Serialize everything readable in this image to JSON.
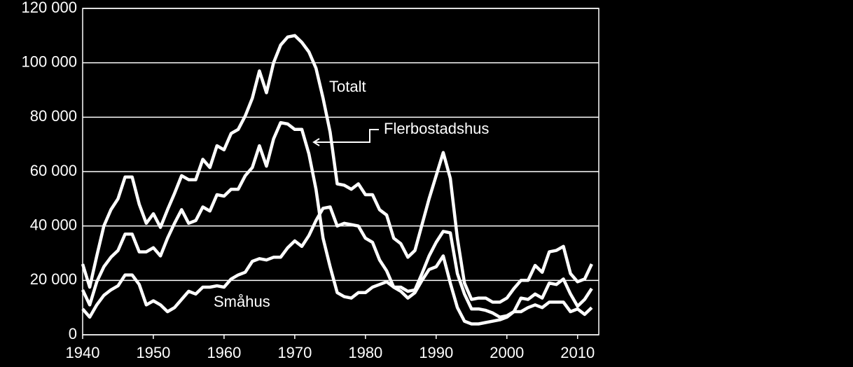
{
  "chart_data": {
    "type": "line",
    "x": [
      1940,
      1941,
      1942,
      1943,
      1944,
      1945,
      1946,
      1947,
      1948,
      1949,
      1950,
      1951,
      1952,
      1953,
      1954,
      1955,
      1956,
      1957,
      1958,
      1959,
      1960,
      1961,
      1962,
      1963,
      1964,
      1965,
      1966,
      1967,
      1968,
      1969,
      1970,
      1971,
      1972,
      1973,
      1974,
      1975,
      1976,
      1977,
      1978,
      1979,
      1980,
      1981,
      1982,
      1983,
      1984,
      1985,
      1986,
      1987,
      1988,
      1989,
      1990,
      1991,
      1992,
      1993,
      1994,
      1995,
      1996,
      1997,
      1998,
      1999,
      2000,
      2001,
      2002,
      2003,
      2004,
      2005,
      2006,
      2007,
      2008,
      2009,
      2010,
      2011,
      2012
    ],
    "xlim": [
      1940,
      2013
    ],
    "xticks": [
      1940,
      1950,
      1960,
      1970,
      1980,
      1990,
      2000,
      2010
    ],
    "ylim": [
      0,
      120000
    ],
    "yticks": [
      0,
      {
        "value": 20000,
        "label": "20 000"
      },
      {
        "value": 40000,
        "label": "40 000"
      },
      {
        "value": 60000,
        "label": "60 000"
      },
      {
        "value": 80000,
        "label": "80 000"
      },
      {
        "value": 100000,
        "label": "100 000"
      },
      {
        "value": 120000,
        "label": "120 000"
      }
    ],
    "grid": true,
    "series": [
      {
        "name": "Totalt",
        "color": "#ffffff",
        "values": [
          26000,
          17500,
          29000,
          40000,
          46000,
          50000,
          58000,
          58000,
          48000,
          41000,
          44500,
          39500,
          46000,
          52000,
          58500,
          57000,
          57000,
          64500,
          61500,
          69500,
          68000,
          74000,
          75500,
          80500,
          87000,
          97000,
          89000,
          100000,
          106500,
          109500,
          110000,
          107500,
          104000,
          98000,
          87000,
          74500,
          55500,
          55000,
          53500,
          55500,
          51500,
          51500,
          46000,
          44000,
          35500,
          33500,
          28500,
          31000,
          40500,
          50000,
          58500,
          67000,
          57500,
          35500,
          19000,
          13000,
          13500,
          13500,
          12000,
          12000,
          13500,
          17000,
          20000,
          20000,
          25500,
          23000,
          30500,
          31000,
          32500,
          22500,
          19500,
          20500,
          26000
        ]
      },
      {
        "name": "Flerbostadshus",
        "color": "#ffffff",
        "values": [
          16500,
          11000,
          19500,
          25000,
          28500,
          31000,
          37000,
          37000,
          30500,
          30500,
          32000,
          29000,
          35500,
          41000,
          46000,
          41000,
          42000,
          47000,
          45500,
          51500,
          51000,
          53500,
          53500,
          58500,
          61500,
          69500,
          62000,
          72000,
          78000,
          77500,
          75500,
          75500,
          66500,
          53500,
          35500,
          25000,
          15500,
          14000,
          13500,
          15500,
          15500,
          17500,
          18500,
          19500,
          17500,
          16000,
          13500,
          15500,
          20000,
          24000,
          25000,
          29000,
          19000,
          10000,
          5000,
          4000,
          4000,
          4500,
          5000,
          5500,
          6500,
          8500,
          8500,
          10000,
          11000,
          10000,
          12000,
          12000,
          12000,
          8500,
          9500,
          7500,
          10000
        ]
      },
      {
        "name": "Småhus",
        "color": "#ffffff",
        "values": [
          9500,
          6500,
          11000,
          14500,
          16500,
          18000,
          22000,
          22000,
          18500,
          11000,
          12500,
          11000,
          8500,
          10000,
          13000,
          16000,
          15000,
          17500,
          17500,
          18000,
          17500,
          20500,
          22000,
          23000,
          27000,
          28000,
          27500,
          28500,
          28500,
          32000,
          34500,
          32500,
          36500,
          42000,
          46500,
          47000,
          40000,
          41000,
          40500,
          40000,
          35500,
          34000,
          27500,
          23500,
          17500,
          17500,
          16000,
          16500,
          22500,
          29000,
          34000,
          38000,
          37500,
          22500,
          15000,
          9500,
          9500,
          9000,
          8000,
          6500,
          7000,
          8500,
          13500,
          13000,
          15000,
          13500,
          19000,
          18500,
          20500,
          15000,
          10500,
          13000,
          17000
        ]
      }
    ]
  }
}
